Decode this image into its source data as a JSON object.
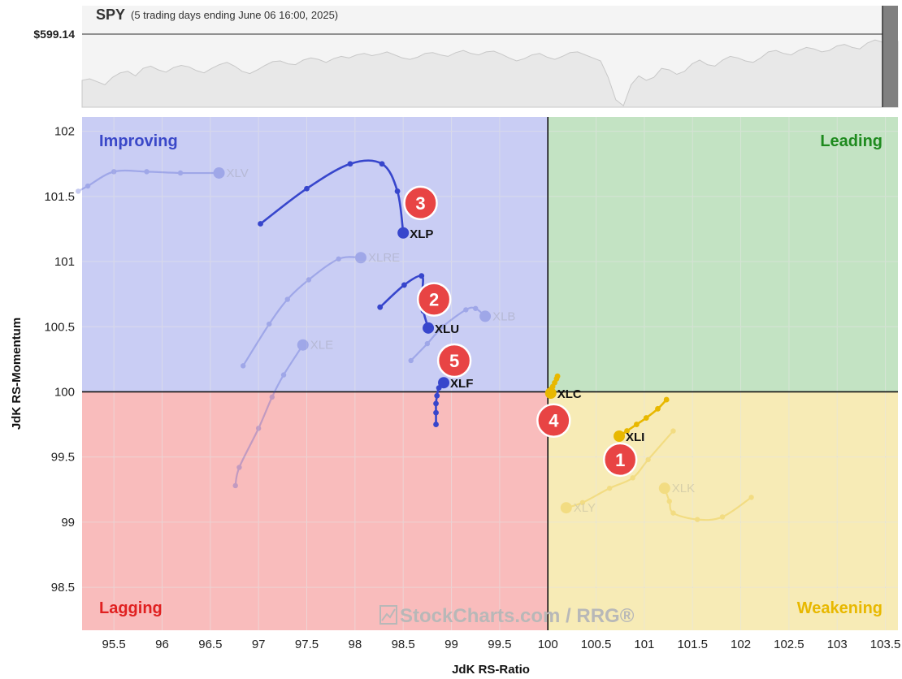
{
  "header": {
    "symbol": "SPY",
    "subtitle": "(5 trading days ending June 06 16:00, 2025)",
    "price": "$599.14"
  },
  "colors": {
    "improving": "#c9cdf4",
    "leading": "#c3e3c3",
    "weakening": "#f7ebb6",
    "lagging": "#f9bcbc",
    "improving_text": "#3a48c8",
    "leading_text": "#1e8a1e",
    "weakening_text": "#e8b800",
    "lagging_text": "#e02020",
    "blue_tail": "#3746cc",
    "yellow_tail": "#e8b800",
    "badge": "#e84444",
    "price_fill": "#e8e8e8",
    "price_line": "#c8c8c8"
  },
  "quadrants": {
    "improving": "Improving",
    "leading": "Leading",
    "weakening": "Weakening",
    "lagging": "Lagging"
  },
  "watermark": "StockCharts.com / RRG®",
  "chart_data": {
    "type": "scatter",
    "xlabel": "JdK RS-Ratio",
    "ylabel": "JdK RS-Momentum",
    "xlim": [
      95.17,
      103.63
    ],
    "ylim": [
      98.17,
      102.11
    ],
    "x_ticks": [
      95.5,
      96,
      96.5,
      97,
      97.5,
      98,
      98.5,
      99,
      99.5,
      100,
      100.5,
      101,
      101.5,
      102,
      102.5,
      103,
      103.5
    ],
    "x_tick_labels": [
      "95.5",
      "96",
      "96.5",
      "97",
      "97.5",
      "98",
      "98.5",
      "99",
      "99.5",
      "100",
      "100.5",
      "101",
      "101.5",
      "102",
      "102.5",
      "103",
      "103.5"
    ],
    "y_ticks": [
      98.5,
      99,
      99.5,
      100,
      100.5,
      101,
      101.5,
      102
    ],
    "y_tick_labels": [
      "98.5",
      "99",
      "99.5",
      "100",
      "100.5",
      "101",
      "101.5",
      "102"
    ],
    "center": [
      100,
      100
    ],
    "series": [
      {
        "name": "XLP",
        "highlighted": true,
        "color": "blue",
        "points": [
          [
            97.02,
            101.29
          ],
          [
            97.5,
            101.56
          ],
          [
            97.95,
            101.75
          ],
          [
            98.28,
            101.75
          ],
          [
            98.44,
            101.54
          ],
          [
            98.5,
            101.22
          ]
        ]
      },
      {
        "name": "XLU",
        "highlighted": true,
        "color": "blue",
        "points": [
          [
            98.26,
            100.65
          ],
          [
            98.51,
            100.82
          ],
          [
            98.69,
            100.89
          ],
          [
            98.7,
            100.77
          ],
          [
            98.71,
            100.62
          ],
          [
            98.76,
            100.49
          ]
        ]
      },
      {
        "name": "XLF",
        "highlighted": true,
        "color": "blue",
        "points": [
          [
            98.84,
            99.75
          ],
          [
            98.84,
            99.84
          ],
          [
            98.84,
            99.91
          ],
          [
            98.85,
            99.97
          ],
          [
            98.87,
            100.03
          ],
          [
            98.92,
            100.07
          ]
        ]
      },
      {
        "name": "XLC",
        "highlighted": true,
        "color": "yellow",
        "points": [
          [
            100.1,
            100.12
          ],
          [
            100.09,
            100.1
          ],
          [
            100.07,
            100.07
          ],
          [
            100.05,
            100.04
          ],
          [
            100.03,
            100.02
          ],
          [
            100.03,
            99.99
          ]
        ]
      },
      {
        "name": "XLI",
        "highlighted": true,
        "color": "yellow",
        "points": [
          [
            101.23,
            99.94
          ],
          [
            101.14,
            99.87
          ],
          [
            101.02,
            99.8
          ],
          [
            100.92,
            99.75
          ],
          [
            100.82,
            99.7
          ],
          [
            100.74,
            99.66
          ]
        ]
      },
      {
        "name": "XLV",
        "highlighted": false,
        "points": [
          [
            95.13,
            101.54
          ],
          [
            95.23,
            101.58
          ],
          [
            95.5,
            101.69
          ],
          [
            95.84,
            101.69
          ],
          [
            96.19,
            101.68
          ],
          [
            96.59,
            101.68
          ]
        ]
      },
      {
        "name": "XLRE",
        "highlighted": false,
        "points": [
          [
            96.84,
            100.2
          ],
          [
            97.11,
            100.52
          ],
          [
            97.3,
            100.71
          ],
          [
            97.52,
            100.86
          ],
          [
            97.83,
            101.02
          ],
          [
            98.06,
            101.03
          ]
        ]
      },
      {
        "name": "XLE",
        "highlighted": false,
        "points": [
          [
            96.76,
            99.28
          ],
          [
            96.8,
            99.42
          ],
          [
            97.0,
            99.72
          ],
          [
            97.14,
            99.96
          ],
          [
            97.26,
            100.13
          ],
          [
            97.46,
            100.36
          ]
        ]
      },
      {
        "name": "XLB",
        "highlighted": false,
        "points": [
          [
            98.58,
            100.24
          ],
          [
            98.75,
            100.37
          ],
          [
            98.91,
            100.5
          ],
          [
            99.15,
            100.63
          ],
          [
            99.25,
            100.64
          ],
          [
            99.35,
            100.58
          ]
        ]
      },
      {
        "name": "XLK",
        "highlighted": false,
        "points": [
          [
            102.11,
            99.19
          ],
          [
            101.81,
            99.04
          ],
          [
            101.55,
            99.02
          ],
          [
            101.3,
            99.07
          ],
          [
            101.26,
            99.16
          ],
          [
            101.21,
            99.26
          ]
        ]
      },
      {
        "name": "XLY",
        "highlighted": false,
        "points": [
          [
            101.3,
            99.7
          ],
          [
            101.04,
            99.48
          ],
          [
            100.88,
            99.34
          ],
          [
            100.64,
            99.26
          ],
          [
            100.36,
            99.15
          ],
          [
            100.19,
            99.11
          ]
        ]
      }
    ],
    "callouts": [
      {
        "label": "1",
        "x": 100.75,
        "y": 99.48
      },
      {
        "label": "2",
        "x": 98.82,
        "y": 100.71
      },
      {
        "label": "3",
        "x": 98.68,
        "y": 101.45
      },
      {
        "label": "4",
        "x": 100.06,
        "y": 99.78
      },
      {
        "label": "5",
        "x": 99.03,
        "y": 100.24
      }
    ],
    "price_chart": {
      "symbol": "SPY",
      "last_price": 599.14,
      "relative_levels": [
        0.36,
        0.38,
        0.34,
        0.3,
        0.4,
        0.46,
        0.48,
        0.42,
        0.52,
        0.55,
        0.5,
        0.47,
        0.53,
        0.56,
        0.54,
        0.49,
        0.46,
        0.52,
        0.57,
        0.6,
        0.55,
        0.48,
        0.45,
        0.5,
        0.56,
        0.61,
        0.62,
        0.58,
        0.57,
        0.63,
        0.66,
        0.64,
        0.6,
        0.65,
        0.68,
        0.66,
        0.7,
        0.72,
        0.69,
        0.71,
        0.74,
        0.7,
        0.66,
        0.64,
        0.67,
        0.72,
        0.73,
        0.7,
        0.68,
        0.73,
        0.76,
        0.72,
        0.7,
        0.74,
        0.75,
        0.71,
        0.66,
        0.62,
        0.65,
        0.7,
        0.72,
        0.67,
        0.64,
        0.68,
        0.73,
        0.74,
        0.7,
        0.66,
        0.62,
        0.4,
        0.1,
        0.02,
        0.3,
        0.42,
        0.36,
        0.4,
        0.52,
        0.5,
        0.44,
        0.48,
        0.58,
        0.63,
        0.57,
        0.55,
        0.63,
        0.68,
        0.66,
        0.62,
        0.6,
        0.66,
        0.74,
        0.76,
        0.72,
        0.7,
        0.76,
        0.8,
        0.78,
        0.74,
        0.76,
        0.82,
        0.84,
        0.8,
        0.78,
        0.86,
        0.9,
        0.87,
        0.84,
        0.88
      ]
    }
  }
}
